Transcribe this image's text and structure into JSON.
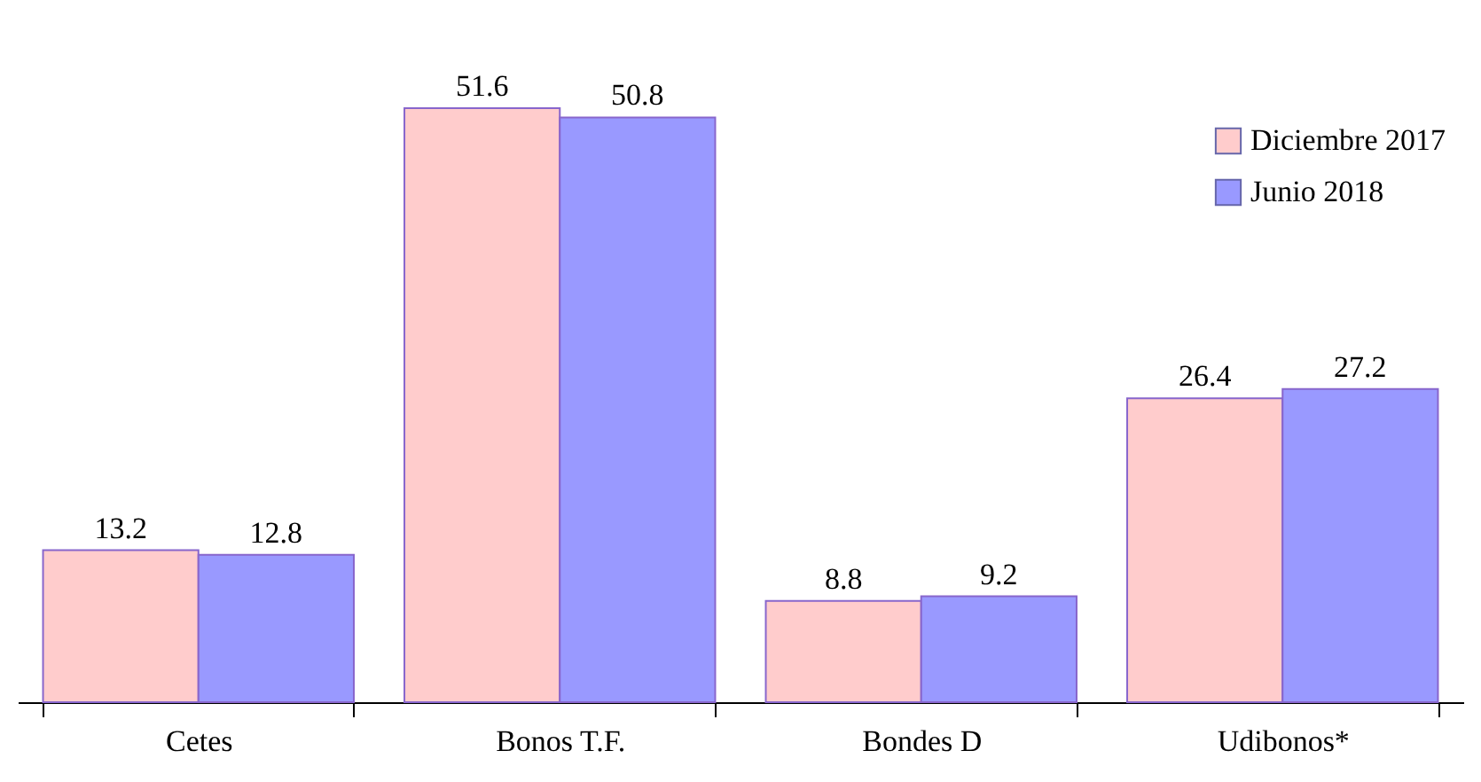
{
  "chart_data": {
    "type": "bar",
    "categories": [
      "Cetes",
      "Bonos T.F.",
      "Bondes D",
      "Udibonos*"
    ],
    "series": [
      {
        "name": "Diciembre 2017",
        "color": "#ffcccc",
        "values": [
          13.2,
          51.6,
          8.8,
          26.4
        ]
      },
      {
        "name": "Junio 2018",
        "color": "#9999ff",
        "values": [
          12.8,
          50.8,
          9.2,
          27.2
        ]
      }
    ],
    "data_labels": true,
    "legend": "top right",
    "grid": false
  }
}
